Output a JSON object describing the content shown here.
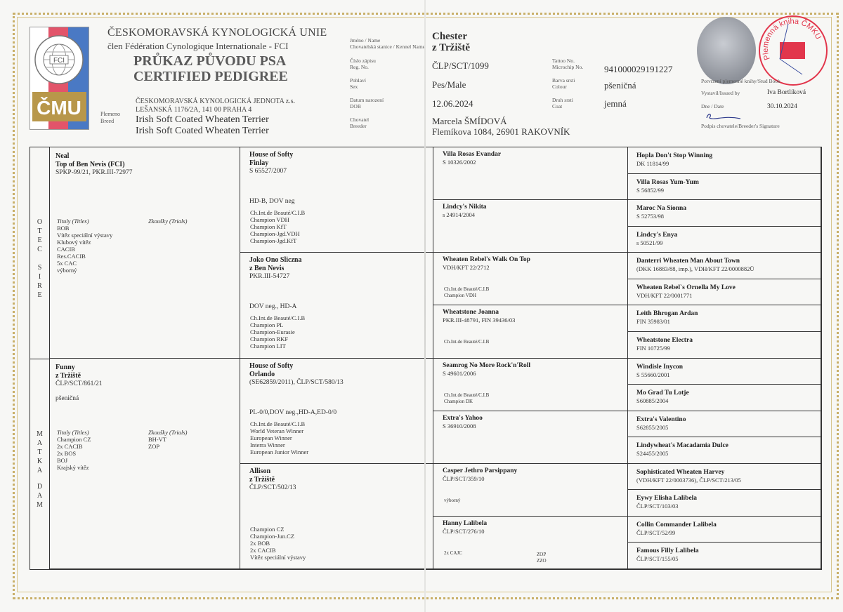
{
  "header": {
    "org_name": "ČESKOMORAVSKÁ KYNOLOGICKÁ UNIE",
    "org_member": "člen Fédération Cynologique Internationale - FCI",
    "title_cz": "PRŮKAZ PŮVODU PSA",
    "title_en": "CERTIFIED PEDIGREE",
    "jednota_line1": "ČESKOMORAVSKÁ KYNOLOGICKÁ JEDNOTA z.s.",
    "jednota_line2": "LEŠANSKÁ 1176/2A, 141 00 PRAHA 4",
    "breed_label_cz": "Plemeno",
    "breed_label_en": "Breed",
    "breed_line1": "Irish Soft Coated Wheaten Terrier",
    "breed_line2": "Irish Soft Coated Wheaten Terrier",
    "logo_text_fci": "FCI",
    "logo_ring_text": "FEDERATION CYNOLOGIQUE INTERNATIONALE",
    "logo_text_cmku": "ČMU",
    "logo_colors": {
      "red": "#e2546a",
      "blue": "#4a79c4",
      "gold": "#b8974a"
    }
  },
  "dog": {
    "name_label": "Jméno / Name",
    "kennel_label": "Chovatelská stanice / Kennel Name",
    "name": "Chester",
    "kennel": "z Tržiště",
    "reg_label_cz": "Číslo zápisu",
    "reg_label_en": "Reg. No.",
    "reg": "ČLP/SCT/1099",
    "sex_label_cz": "Pohlaví",
    "sex_label_en": "Sex",
    "sex": "Pes/Male",
    "dob_label_cz": "Datum narození",
    "dob_label_en": "DOB",
    "dob": "12.06.2024",
    "breeder_label_cz": "Chovatel",
    "breeder_label_en": "Breeder",
    "breeder_name": "Marcela ŠMÍDOVÁ",
    "breeder_address": "Flemíkova 1084, 26901 RAKOVNÍK",
    "tattoo_label": "Tattoo No.",
    "chip_label": "Microchip No.",
    "chip": "941000029191227",
    "colour_label_cz": "Barva srsti",
    "colour_label_en": "Colour",
    "colour": "pšeničná",
    "coat_label_cz": "Druh srsti",
    "coat_label_en": "Coat",
    "coat": "jemná"
  },
  "studbook": {
    "stamp_text": "Plemenná kniha ČMKU",
    "stamp_color": "#e2364c",
    "confirm_label": "Potvrzení plemenné knihy/Stud Book",
    "issued_label": "Vystavil/Issued by",
    "issued_by": "Iva Bortlíková",
    "date_label": "Dne / Date",
    "date": "30.10.2024",
    "signature_label": "Podpis chovatele/Breeder's Signature"
  },
  "side_labels": {
    "sire_cz": "O T E C",
    "sire_en": "S I R E",
    "dam_cz": "M A T K A",
    "dam_en": "D A M"
  },
  "pedigree": {
    "gen1": [
      {
        "name": [
          "Neal",
          "Top of Ben Nevis (FCI)"
        ],
        "reg": "SPKP-99/21, PKR.III-72977",
        "extra": "",
        "titles_label": "Tituly (Titles)",
        "titles": [
          "BOB",
          "Vítěz speciální výstavy",
          "Klubový vítěz",
          "CACIB",
          "Res.CACIB",
          "5x CAC",
          "výborný"
        ],
        "trials_label": "Zkoušky (Trials)",
        "trials": []
      },
      {
        "name": [
          "Funny",
          "z Tržiště"
        ],
        "reg": "ČLP/SCT/861/21",
        "extra": "pšeničná",
        "titles_label": "Tituly (Titles)",
        "titles": [
          "Champion CZ",
          "2x CACIB",
          "2x BOS",
          "BOJ",
          "Krajský vítěz"
        ],
        "trials_label": "Zkoušky (Trials)",
        "trials": [
          "BH-VT",
          "ZOP"
        ]
      }
    ],
    "gen2": [
      {
        "name": [
          "House of Softy",
          "Finlay"
        ],
        "reg": "S 65527/2007",
        "health": "HD-B, DOV neg",
        "titles": [
          "Ch.Int.de Beauté/C.I.B",
          "Champion VDH",
          "Champion KfT",
          "Champion-Jgd.VDH",
          "Champion-Jgd.KfT"
        ]
      },
      {
        "name": [
          "Joko Ono Sliczna",
          "z Ben Nevis"
        ],
        "reg": "PKR.III-54727",
        "health": "DOV neg., HD-A",
        "titles": [
          "Ch.Int.de Beauté/C.I.B",
          "Champion PL",
          "Champion-Eurasie",
          "Champion RKF",
          "Champion LIT"
        ]
      },
      {
        "name": [
          "House of Softy",
          "Orlando"
        ],
        "reg": "(SE62859/2011), ČLP/SCT/580/13",
        "health": "PL-0/0,DOV neg.,HD-A,ED-0/0",
        "titles": [
          "Ch.Int.de Beauté/C.I.B",
          "World Veteran Winner",
          "European Winner",
          "Interra Winner",
          "European Junior Winner"
        ]
      },
      {
        "name": [
          "Allison",
          "z Tržiště"
        ],
        "reg": "ČLP/SCT/502/13",
        "health": "",
        "titles": [
          "Champion CZ",
          "Champion-Jun.CZ",
          "2x BOB",
          "2x CACIB",
          "Vítěz speciální výstavy"
        ]
      }
    ],
    "gen3": [
      {
        "name": "Villa Rosas Evandar",
        "reg": "S 10326/2002",
        "titles": [],
        "trials": []
      },
      {
        "name": "Lindcy's Nikita",
        "reg": "s 24914/2004",
        "titles": [],
        "trials": []
      },
      {
        "name": "Wheaten Rebel's Walk On Top",
        "reg": "VDH/KFT 22/2712",
        "titles": [
          "Ch.Int.de Beauté/C.I.B",
          "Champion VDH"
        ],
        "trials": []
      },
      {
        "name": "Wheatstone Joanna",
        "reg": "PKR.III-48791, FIN 39436/03",
        "titles": [
          "Ch.Int.de Beauté/C.I.B"
        ],
        "trials": []
      },
      {
        "name": "Seamrog No More Rock'n'Roll",
        "reg": "S 49601/2006",
        "titles": [
          "Ch.Int.de Beauté/C.I.B",
          "Champion DK"
        ],
        "trials": []
      },
      {
        "name": "Extra's Yahoo",
        "reg": "S 36910/2008",
        "titles": [],
        "trials": []
      },
      {
        "name": "Casper Jethro Parsippany",
        "reg": "ČLP/SCT/359/10",
        "titles": [
          "výborný"
        ],
        "trials": []
      },
      {
        "name": "Hanny Lalibela",
        "reg": "ČLP/SCT/276/10",
        "titles": [
          "2x CAJC"
        ],
        "trials": [
          "ZOP",
          "ZZO"
        ]
      }
    ],
    "gen4": [
      {
        "name": "Hopla Don't Stop Winning",
        "reg": "DK 11814/99"
      },
      {
        "name": "Villa Rosas Yum-Yum",
        "reg": "S 56852/99"
      },
      {
        "name": "Maroc Na Sionna",
        "reg": "S 52753/98"
      },
      {
        "name": "Lindcy's Enya",
        "reg": "s 50521/99"
      },
      {
        "name": "Danterri Wheaten Man About Town",
        "reg": "(DKK 16883/88, imp.), VDH/KFT 22/0000882Ü"
      },
      {
        "name": "Wheaten Rebel`s Ornella My Love",
        "reg": "VDH/KFT 22/0001771"
      },
      {
        "name": "Leith Bhrogan Ardan",
        "reg": "FIN 35983/01"
      },
      {
        "name": "Wheatstone Electra",
        "reg": "FIN 10725/99"
      },
      {
        "name": "Windisle Inycon",
        "reg": "S 55660/2001"
      },
      {
        "name": "Mo Grad Tu Lotje",
        "reg": "S60885/2004"
      },
      {
        "name": "Extra's Valentino",
        "reg": "S62855/2005"
      },
      {
        "name": "Lindywheat's Macadamia Dulce",
        "reg": "S24455/2005"
      },
      {
        "name": "Sophisticated Wheaten Harvey",
        "reg": "(VDH/KFT 22/0003736), ČLP/SCT/213/05"
      },
      {
        "name": "Eywy Elisha Lalibela",
        "reg": "ČLP/SCT/103/03"
      },
      {
        "name": "Collin Commander Lalibela",
        "reg": "ČLP/SCT/52/99"
      },
      {
        "name": "Famous Filly Lalibela",
        "reg": "ČLP/SCT/155/05"
      }
    ]
  }
}
